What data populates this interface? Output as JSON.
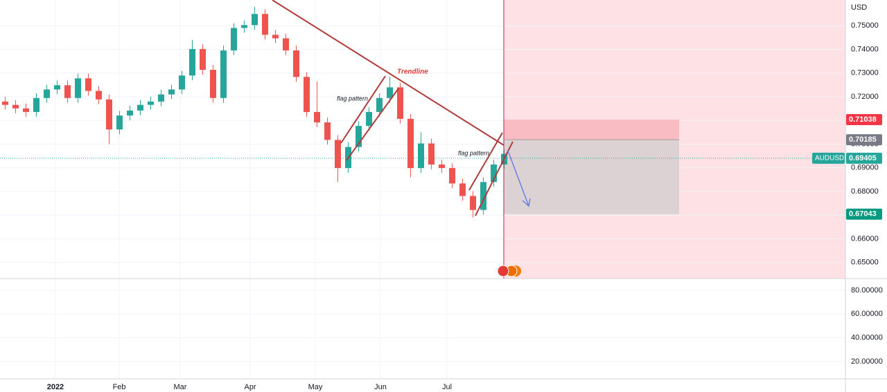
{
  "chart_data": [
    {
      "type": "candlestick",
      "currency": "USD",
      "x": [
        0.5,
        1.5,
        2.5,
        3.5,
        4.5,
        5.5,
        6.5,
        7.5,
        8.5,
        9.5,
        10.5,
        11.5,
        12.5,
        13.5,
        14.5,
        15.5,
        16.5,
        17.5,
        18.5,
        19.5,
        20.5,
        21.5,
        22.5,
        23.5,
        24.5,
        25.5,
        26.5,
        27.5,
        28.5,
        29.5,
        30.5,
        31.5,
        32.5,
        33.5,
        34.5,
        35.5,
        36.5,
        37.5,
        38.5,
        39.5,
        40.5,
        41.5,
        42.5,
        43.5,
        44.5,
        45.5,
        46.5,
        47.5,
        48.5
      ],
      "open": [
        0.718,
        0.7166,
        0.7151,
        0.7136,
        0.7195,
        0.7231,
        0.7249,
        0.7195,
        0.7278,
        0.7225,
        0.7189,
        0.7062,
        0.7121,
        0.7142,
        0.7166,
        0.718,
        0.721,
        0.7231,
        0.729,
        0.7402,
        0.7314,
        0.7195,
        0.7396,
        0.7491,
        0.7503,
        0.755,
        0.7462,
        0.7447,
        0.7396,
        0.7284,
        0.7136,
        0.7092,
        0.7018,
        0.6899,
        0.6988,
        0.7077,
        0.7136,
        0.7195,
        0.724,
        0.7107,
        0.6899,
        0.7003,
        0.6914,
        0.6899,
        0.6834,
        0.6781,
        0.6722,
        0.684,
        0.6914
      ],
      "high": [
        0.72,
        0.7186,
        0.7171,
        0.7215,
        0.7251,
        0.7269,
        0.7269,
        0.7298,
        0.7298,
        0.7245,
        0.7209,
        0.7141,
        0.7162,
        0.7186,
        0.72,
        0.723,
        0.7251,
        0.731,
        0.744,
        0.7422,
        0.7334,
        0.7416,
        0.7511,
        0.7523,
        0.758,
        0.757,
        0.7482,
        0.7467,
        0.7416,
        0.7304,
        0.7265,
        0.7112,
        0.7038,
        0.7008,
        0.7097,
        0.7156,
        0.7215,
        0.7285,
        0.726,
        0.7127,
        0.705,
        0.7023,
        0.6934,
        0.6919,
        0.6854,
        0.6801,
        0.686,
        0.6934,
        0.6979
      ],
      "low": [
        0.7146,
        0.7131,
        0.7116,
        0.7116,
        0.7175,
        0.7211,
        0.7175,
        0.7175,
        0.7205,
        0.7169,
        0.7,
        0.7042,
        0.7101,
        0.7122,
        0.7146,
        0.716,
        0.719,
        0.7211,
        0.727,
        0.7294,
        0.7175,
        0.7175,
        0.7376,
        0.7471,
        0.7483,
        0.7442,
        0.7427,
        0.7376,
        0.7264,
        0.7116,
        0.7072,
        0.6998,
        0.684,
        0.6879,
        0.6968,
        0.7057,
        0.7116,
        0.7175,
        0.7087,
        0.686,
        0.6879,
        0.6894,
        0.6879,
        0.6814,
        0.6761,
        0.669,
        0.6702,
        0.682,
        0.6894
      ],
      "close": [
        0.7166,
        0.7151,
        0.7136,
        0.7195,
        0.7231,
        0.7249,
        0.7195,
        0.7278,
        0.7225,
        0.7189,
        0.7062,
        0.7121,
        0.7142,
        0.7166,
        0.718,
        0.721,
        0.7231,
        0.729,
        0.7402,
        0.7314,
        0.7195,
        0.7396,
        0.7491,
        0.7503,
        0.755,
        0.7462,
        0.7447,
        0.7396,
        0.7284,
        0.7136,
        0.7092,
        0.7018,
        0.6899,
        0.6988,
        0.7077,
        0.7136,
        0.7195,
        0.724,
        0.7107,
        0.6899,
        0.7003,
        0.6914,
        0.6899,
        0.6834,
        0.6781,
        0.6722,
        0.684,
        0.6914,
        0.6959
      ],
      "up_color": "#26a69a",
      "down_color": "#ef5350",
      "xlim": [
        0,
        81.33
      ],
      "xticks": [
        {
          "value": 5.33,
          "label": "2022"
        },
        {
          "value": 11.47,
          "label": "Feb"
        },
        {
          "value": 17.33,
          "label": "Mar"
        },
        {
          "value": 24.07,
          "label": "Apr"
        },
        {
          "value": 30.33,
          "label": "May"
        },
        {
          "value": 36.6,
          "label": "Jun"
        },
        {
          "value": 43,
          "label": "Jul"
        }
      ],
      "ylim": [
        0.6432,
        0.7609
      ],
      "yticks": [
        {
          "value": 0.65,
          "label": "0.65000"
        },
        {
          "value": 0.66,
          "label": "0.66000"
        },
        {
          "value": 0.67,
          "label": "0.67000"
        },
        {
          "value": 0.68,
          "label": "0.68000"
        },
        {
          "value": 0.69,
          "label": "0.69000"
        },
        {
          "value": 0.7,
          "label": "0.70000"
        },
        {
          "value": 0.71,
          "label": "0.71000"
        },
        {
          "value": 0.72,
          "label": "0.72000"
        },
        {
          "value": 0.73,
          "label": "0.73000"
        },
        {
          "value": 0.74,
          "label": "0.74000"
        },
        {
          "value": 0.75,
          "label": "0.75000"
        }
      ],
      "grid": true,
      "position": {
        "symbol": "AUDUSD",
        "current": 0.69405,
        "stop": 0.71038,
        "entry": 0.70185,
        "target": 0.67043
      },
      "annotations": [
        "Trendline",
        "flag pattern",
        "flag pattern"
      ]
    },
    {
      "type": "pane",
      "ylim": [
        5.4,
        89.9
      ],
      "yticks": [
        {
          "value": 20,
          "label": "20.00000"
        },
        {
          "value": 40,
          "label": "40.00000"
        },
        {
          "value": 60,
          "label": "60.00000"
        },
        {
          "value": 80,
          "label": "80.00000"
        }
      ]
    }
  ]
}
